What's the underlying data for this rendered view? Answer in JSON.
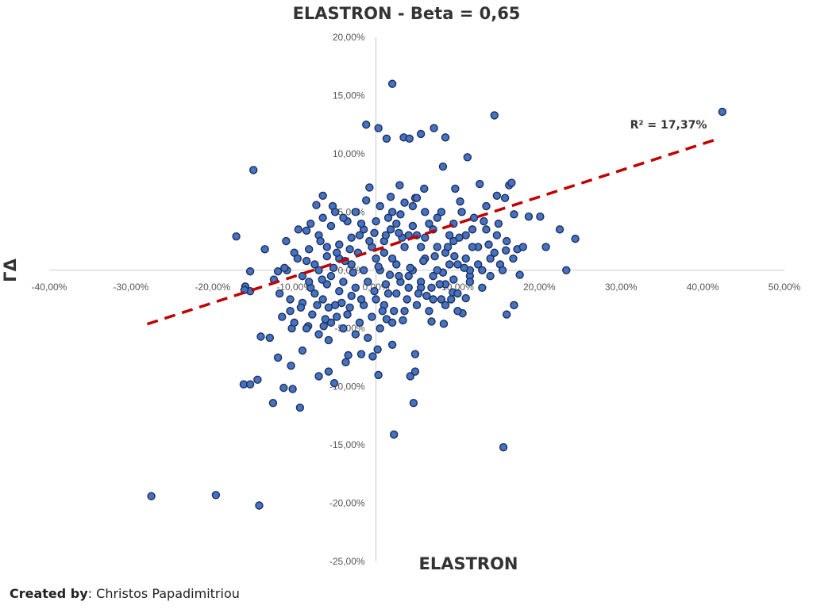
{
  "chart_data": {
    "type": "scatter",
    "title": "ELASTRON - Beta = 0,65",
    "xlabel": "ELASTRON",
    "ylabel": "ΓΔ",
    "xlim": [
      -0.4,
      0.5
    ],
    "ylim": [
      -0.25,
      0.2
    ],
    "x_ticks": [
      "-40,00%",
      "-30,00%",
      "-20,00%",
      "-10,00%",
      "0,00%",
      "10,00%",
      "20,00%",
      "30,00%",
      "40,00%",
      "50,00%"
    ],
    "y_ticks": [
      "-25,00%",
      "-20,00%",
      "-15,00%",
      "-10,00%",
      "-5,00%",
      "0,00%",
      "5,00%",
      "10,00%",
      "15,00%",
      "20,00%"
    ],
    "trendline": {
      "slope": 0.2276,
      "intercept": 0.0175,
      "x_range": [
        -0.28,
        0.42
      ],
      "style": "dashed",
      "color": "#c00000"
    },
    "r_squared_label": "R² = 17,37%",
    "marker_color": "#4472c4",
    "marker_edge": "#1f2f55",
    "points": [
      [
        0.02,
        0.16
      ],
      [
        -0.012,
        0.125
      ],
      [
        0.003,
        0.122
      ],
      [
        0.145,
        0.133
      ],
      [
        0.424,
        0.136
      ],
      [
        0.055,
        0.117
      ],
      [
        0.071,
        0.122
      ],
      [
        0.085,
        0.114
      ],
      [
        0.013,
        0.113
      ],
      [
        0.034,
        0.114
      ],
      [
        0.041,
        0.113
      ],
      [
        0.112,
        0.097
      ],
      [
        0.082,
        0.089
      ],
      [
        -0.15,
        0.086
      ],
      [
        0.127,
        0.074
      ],
      [
        0.163,
        0.073
      ],
      [
        0.166,
        0.075
      ],
      [
        -0.008,
        0.071
      ],
      [
        0.029,
        0.073
      ],
      [
        0.059,
        0.07
      ],
      [
        0.097,
        0.07
      ],
      [
        -0.065,
        0.064
      ],
      [
        0.018,
        0.063
      ],
      [
        0.048,
        0.062
      ],
      [
        0.103,
        0.059
      ],
      [
        0.148,
        0.064
      ],
      [
        0.158,
        0.062
      ],
      [
        -0.073,
        0.056
      ],
      [
        -0.053,
        0.055
      ],
      [
        0.135,
        0.055
      ],
      [
        0.169,
        0.048
      ],
      [
        0.187,
        0.046
      ],
      [
        0.201,
        0.046
      ],
      [
        -0.171,
        0.029
      ],
      [
        -0.085,
        0.034
      ],
      [
        0.208,
        0.02
      ],
      [
        0.225,
        0.035
      ],
      [
        0.244,
        0.027
      ],
      [
        -0.136,
        0.018
      ],
      [
        0.159,
        0.017
      ],
      [
        0.173,
        0.018
      ],
      [
        0.152,
        0.005
      ],
      [
        0.233,
        0.0
      ],
      [
        0.176,
        -0.004
      ],
      [
        -0.12,
        -0.001
      ],
      [
        -0.154,
        -0.001
      ],
      [
        -0.109,
        0.0
      ],
      [
        -0.16,
        -0.014
      ],
      [
        -0.154,
        -0.018
      ],
      [
        -0.161,
        -0.017
      ],
      [
        -0.141,
        -0.057
      ],
      [
        -0.13,
        -0.058
      ],
      [
        -0.103,
        -0.05
      ],
      [
        -0.083,
        -0.048
      ],
      [
        -0.064,
        -0.048
      ],
      [
        -0.12,
        -0.075
      ],
      [
        -0.104,
        -0.082
      ],
      [
        -0.09,
        -0.069
      ],
      [
        -0.058,
        -0.06
      ],
      [
        -0.034,
        -0.073
      ],
      [
        -0.07,
        -0.091
      ],
      [
        -0.058,
        -0.087
      ],
      [
        -0.037,
        -0.079
      ],
      [
        0.003,
        -0.09
      ],
      [
        0.042,
        -0.091
      ],
      [
        0.048,
        -0.087
      ],
      [
        -0.162,
        -0.098
      ],
      [
        -0.145,
        -0.094
      ],
      [
        -0.154,
        -0.098
      ],
      [
        -0.113,
        -0.101
      ],
      [
        -0.102,
        -0.102
      ],
      [
        -0.051,
        -0.097
      ],
      [
        -0.126,
        -0.114
      ],
      [
        -0.093,
        -0.118
      ],
      [
        0.046,
        -0.114
      ],
      [
        0.022,
        -0.141
      ],
      [
        0.156,
        -0.152
      ],
      [
        0.16,
        -0.038
      ],
      [
        0.169,
        -0.03
      ],
      [
        0.083,
        -0.046
      ],
      [
        0.106,
        -0.037
      ],
      [
        0.094,
        -0.019
      ],
      [
        0.11,
        -0.024
      ],
      [
        0.068,
        -0.044
      ],
      [
        0.033,
        -0.043
      ],
      [
        0.013,
        -0.042
      ],
      [
        0.048,
        -0.072
      ],
      [
        0.02,
        -0.064
      ],
      [
        -0.018,
        -0.072
      ],
      [
        0.002,
        -0.068
      ],
      [
        -0.004,
        -0.074
      ],
      [
        -0.275,
        -0.194
      ],
      [
        -0.196,
        -0.193
      ],
      [
        -0.143,
        -0.202
      ],
      [
        -0.07,
        0.03
      ],
      [
        -0.06,
        0.02
      ],
      [
        -0.045,
        0.01
      ],
      [
        -0.03,
        0.005
      ],
      [
        -0.015,
        0.0
      ],
      [
        0.0,
        0.01
      ],
      [
        0.01,
        0.025
      ],
      [
        0.025,
        0.04
      ],
      [
        0.04,
        0.03
      ],
      [
        0.055,
        0.02
      ],
      [
        0.07,
        0.035
      ],
      [
        0.085,
        0.015
      ],
      [
        0.1,
        0.005
      ],
      [
        0.115,
        -0.005
      ],
      [
        0.095,
        0.025
      ],
      [
        0.075,
        0.045
      ],
      [
        0.06,
        0.05
      ],
      [
        0.045,
        0.055
      ],
      [
        0.03,
        0.048
      ],
      [
        0.015,
        0.045
      ],
      [
        0.0,
        0.042
      ],
      [
        -0.015,
        0.035
      ],
      [
        -0.03,
        0.028
      ],
      [
        -0.045,
        0.022
      ],
      [
        -0.06,
        0.012
      ],
      [
        -0.075,
        0.005
      ],
      [
        -0.09,
        -0.005
      ],
      [
        -0.08,
        -0.015
      ],
      [
        -0.065,
        -0.025
      ],
      [
        -0.05,
        -0.03
      ],
      [
        -0.035,
        -0.038
      ],
      [
        -0.02,
        -0.045
      ],
      [
        -0.005,
        -0.04
      ],
      [
        0.01,
        -0.03
      ],
      [
        0.025,
        -0.02
      ],
      [
        0.04,
        -0.015
      ],
      [
        0.055,
        -0.01
      ],
      [
        0.07,
        -0.005
      ],
      [
        0.085,
        -0.012
      ],
      [
        0.1,
        -0.02
      ],
      [
        0.115,
        -0.01
      ],
      [
        0.13,
        0.0
      ],
      [
        0.14,
        0.01
      ],
      [
        0.125,
        0.02
      ],
      [
        0.11,
        0.03
      ],
      [
        0.095,
        0.04
      ],
      [
        0.08,
        0.05
      ],
      [
        0.065,
        0.04
      ],
      [
        0.05,
        0.03
      ],
      [
        0.035,
        0.02
      ],
      [
        0.02,
        0.01
      ],
      [
        0.005,
        0.0
      ],
      [
        -0.01,
        -0.01
      ],
      [
        -0.025,
        -0.015
      ],
      [
        -0.04,
        -0.01
      ],
      [
        -0.055,
        -0.005
      ],
      [
        -0.07,
        0.0
      ],
      [
        -0.085,
        0.008
      ],
      [
        -0.1,
        0.015
      ],
      [
        -0.11,
        0.025
      ],
      [
        -0.095,
        0.035
      ],
      [
        -0.08,
        0.04
      ],
      [
        -0.065,
        0.045
      ],
      [
        -0.05,
        0.05
      ],
      [
        -0.035,
        0.042
      ],
      [
        -0.02,
        0.03
      ],
      [
        -0.005,
        0.02
      ],
      [
        0.01,
        0.015
      ],
      [
        0.025,
        0.005
      ],
      [
        0.04,
        -0.005
      ],
      [
        0.055,
        -0.015
      ],
      [
        0.07,
        -0.025
      ],
      [
        0.085,
        -0.03
      ],
      [
        0.1,
        -0.035
      ],
      [
        0.115,
        0.0
      ],
      [
        0.13,
        -0.015
      ],
      [
        0.145,
        0.015
      ],
      [
        0.16,
        0.025
      ],
      [
        0.15,
        0.04
      ],
      [
        0.135,
        0.035
      ],
      [
        0.12,
        0.045
      ],
      [
        0.105,
        0.05
      ],
      [
        0.09,
        0.03
      ],
      [
        0.075,
        0.02
      ],
      [
        0.06,
        0.01
      ],
      [
        0.045,
        0.0
      ],
      [
        0.03,
        -0.01
      ],
      [
        0.015,
        -0.02
      ],
      [
        0.0,
        -0.025
      ],
      [
        -0.015,
        -0.03
      ],
      [
        -0.03,
        -0.022
      ],
      [
        -0.045,
        -0.018
      ],
      [
        -0.06,
        -0.012
      ],
      [
        -0.075,
        -0.02
      ],
      [
        -0.09,
        -0.028
      ],
      [
        -0.105,
        -0.035
      ],
      [
        -0.115,
        -0.04
      ],
      [
        -0.1,
        -0.045
      ],
      [
        -0.085,
        -0.05
      ],
      [
        -0.07,
        -0.055
      ],
      [
        -0.055,
        -0.045
      ],
      [
        -0.04,
        -0.05
      ],
      [
        -0.025,
        -0.055
      ],
      [
        -0.01,
        -0.058
      ],
      [
        0.005,
        -0.05
      ],
      [
        0.02,
        -0.045
      ],
      [
        0.035,
        -0.035
      ],
      [
        0.05,
        -0.03
      ],
      [
        0.065,
        -0.035
      ],
      [
        0.08,
        -0.025
      ],
      [
        0.095,
        -0.008
      ],
      [
        0.11,
        0.01
      ],
      [
        0.125,
        0.005
      ],
      [
        0.14,
        -0.005
      ],
      [
        0.155,
        0.0
      ],
      [
        0.168,
        0.01
      ],
      [
        0.18,
        0.02
      ],
      [
        -0.012,
        0.06
      ],
      [
        0.005,
        0.055
      ],
      [
        0.02,
        0.05
      ],
      [
        0.035,
        0.058
      ],
      [
        0.05,
        0.062
      ],
      [
        -0.025,
        0.05
      ],
      [
        -0.04,
        0.045
      ],
      [
        -0.055,
        0.038
      ],
      [
        -0.068,
        0.025
      ],
      [
        -0.082,
        0.018
      ],
      [
        -0.096,
        0.01
      ],
      [
        -0.112,
        0.002
      ],
      [
        -0.125,
        -0.008
      ],
      [
        -0.118,
        -0.02
      ],
      [
        -0.105,
        -0.025
      ],
      [
        -0.092,
        -0.032
      ],
      [
        -0.078,
        -0.038
      ],
      [
        -0.062,
        -0.042
      ],
      [
        -0.048,
        -0.04
      ],
      [
        -0.032,
        -0.032
      ],
      [
        -0.018,
        -0.025
      ],
      [
        -0.002,
        -0.018
      ],
      [
        0.012,
        -0.012
      ],
      [
        0.028,
        -0.005
      ],
      [
        0.042,
        0.002
      ],
      [
        0.058,
        0.008
      ],
      [
        0.072,
        0.012
      ],
      [
        0.088,
        0.02
      ],
      [
        0.102,
        0.028
      ],
      [
        0.118,
        0.035
      ],
      [
        0.132,
        0.042
      ],
      [
        0.018,
        0.035
      ],
      [
        0.032,
        0.028
      ],
      [
        -0.008,
        0.025
      ],
      [
        -0.022,
        0.015
      ],
      [
        -0.038,
        0.008
      ],
      [
        -0.052,
        0.002
      ],
      [
        -0.066,
        -0.008
      ],
      [
        -0.082,
        -0.01
      ],
      [
        0.008,
        -0.035
      ],
      [
        0.022,
        -0.035
      ],
      [
        0.038,
        -0.025
      ],
      [
        0.052,
        -0.02
      ],
      [
        0.068,
        -0.015
      ],
      [
        0.082,
        -0.002
      ],
      [
        0.096,
        0.012
      ],
      [
        0.06,
        0.028
      ],
      [
        0.045,
        0.038
      ],
      [
        0.028,
        0.032
      ],
      [
        0.012,
        0.03
      ],
      [
        -0.002,
        0.032
      ],
      [
        -0.018,
        0.04
      ],
      [
        -0.032,
        0.018
      ],
      [
        -0.048,
        0.015
      ],
      [
        0.075,
        0.0
      ],
      [
        0.09,
        0.005
      ],
      [
        0.118,
        0.02
      ],
      [
        0.148,
        0.03
      ],
      [
        0.138,
        0.022
      ],
      [
        0.003,
        0.003
      ],
      [
        0.017,
        -0.004
      ],
      [
        -0.028,
        -0.002
      ],
      [
        -0.042,
        -0.028
      ],
      [
        -0.058,
        -0.032
      ],
      [
        -0.072,
        -0.03
      ],
      [
        0.062,
        -0.022
      ],
      [
        0.078,
        -0.012
      ],
      [
        0.092,
        -0.025
      ],
      [
        0.108,
        0.002
      ]
    ]
  },
  "credit": {
    "label": "Created by",
    "name": ": Christos Papadimitriou"
  }
}
